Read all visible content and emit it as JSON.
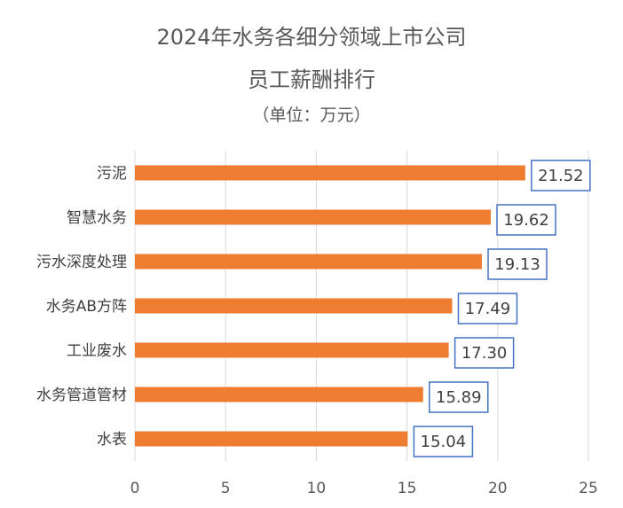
{
  "chart_data": {
    "type": "bar",
    "orientation": "horizontal",
    "title": "2024年水务各细分领域上市公司",
    "subtitle": "员工薪酬排行",
    "unit_label": "（单位：万元）",
    "categories": [
      "污泥",
      "智慧水务",
      "污水深度处理",
      "水务AB方阵",
      "工业废水",
      "水务管道管材",
      "水表"
    ],
    "values": [
      21.52,
      19.62,
      19.13,
      17.49,
      17.3,
      15.89,
      15.04
    ],
    "value_labels": [
      "21.52",
      "19.62",
      "19.13",
      "17.49",
      "17.30",
      "15.89",
      "15.04"
    ],
    "xlim": [
      0,
      25
    ],
    "x_ticks": [
      0,
      5,
      10,
      15,
      20,
      25
    ],
    "grid": true,
    "bar_color": "#ED7D31",
    "label_border_color": "#4472C4"
  }
}
